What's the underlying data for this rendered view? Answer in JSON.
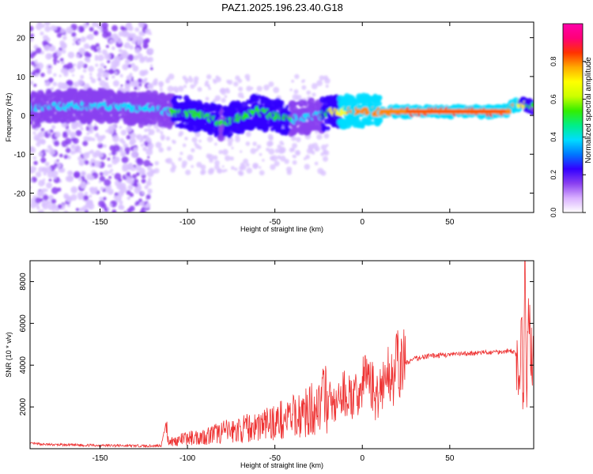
{
  "title": "PAZ1.2025.196.23.40.G18",
  "colors": {
    "snr_line": "#ee3333",
    "axis": "#000000",
    "grid": "#000000",
    "colormap": [
      "#ffffff",
      "#d9c2ff",
      "#8a40f0",
      "#3300ff",
      "#00ddff",
      "#22ee00",
      "#ffff00",
      "#ff8800",
      "#ff0000",
      "#ff00aa"
    ]
  },
  "chart_data": [
    {
      "type": "heatmap",
      "title": "PAZ1.2025.196.23.40.G18",
      "xlabel": "Height of straight line (km)",
      "ylabel": "Frequency (Hz)",
      "xlim": [
        -190,
        98
      ],
      "ylim": [
        -25,
        24
      ],
      "xticks": [
        -150,
        -100,
        -50,
        0,
        50
      ],
      "yticks": [
        -20,
        -10,
        0,
        10,
        20
      ],
      "colorbar": {
        "label": "Normalized spectral amplitude",
        "range": [
          0.0,
          1.0
        ],
        "ticks": [
          0.0,
          0.2,
          0.4,
          0.6,
          0.8
        ]
      },
      "ridge": {
        "x": [
          -190,
          -160,
          -125,
          -110,
          -90,
          -80,
          -60,
          -40,
          -25,
          -15,
          0,
          20,
          50,
          80,
          90,
          98
        ],
        "freq": [
          2,
          2.5,
          2,
          1,
          0,
          -2,
          1,
          -1,
          0,
          1,
          1,
          1,
          1,
          1,
          3,
          2
        ],
        "amplitude": [
          0.4,
          0.4,
          0.45,
          0.5,
          0.55,
          0.5,
          0.6,
          0.5,
          0.45,
          0.7,
          0.75,
          0.85,
          0.9,
          0.9,
          0.7,
          0.5
        ]
      }
    },
    {
      "type": "line",
      "xlabel": "Height of straight line (km)",
      "ylabel": "SNR (10 * v/v)",
      "xlim": [
        -190,
        98
      ],
      "ylim": [
        0,
        9000
      ],
      "xticks": [
        -150,
        -100,
        -50,
        0,
        50
      ],
      "yticks": [
        2000,
        4000,
        6000,
        8000
      ],
      "series": [
        {
          "x": [
            -190,
            -180,
            -170,
            -160,
            -150,
            -140,
            -130,
            -120,
            -115,
            -112,
            -111,
            -108,
            -100,
            -90,
            -80,
            -70,
            -60,
            -50,
            -40,
            -30,
            -25,
            -20,
            -15,
            -10,
            -5,
            0,
            3,
            5,
            8,
            10,
            15,
            20,
            25,
            30,
            35,
            40,
            50,
            60,
            70,
            80,
            85,
            88,
            90,
            91,
            92,
            93,
            94,
            95,
            96,
            98
          ],
          "y": [
            250,
            200,
            180,
            170,
            160,
            150,
            140,
            130,
            160,
            1300,
            400,
            350,
            500,
            600,
            800,
            900,
            1100,
            1300,
            1500,
            1800,
            2200,
            2400,
            2000,
            2700,
            2300,
            3000,
            3700,
            3200,
            2300,
            3000,
            3500,
            3900,
            4100,
            4300,
            4400,
            4450,
            4500,
            4550,
            4600,
            4650,
            4700,
            4500,
            3500,
            5500,
            2000,
            8500,
            3000,
            6500,
            4500,
            4300
          ]
        }
      ]
    }
  ]
}
